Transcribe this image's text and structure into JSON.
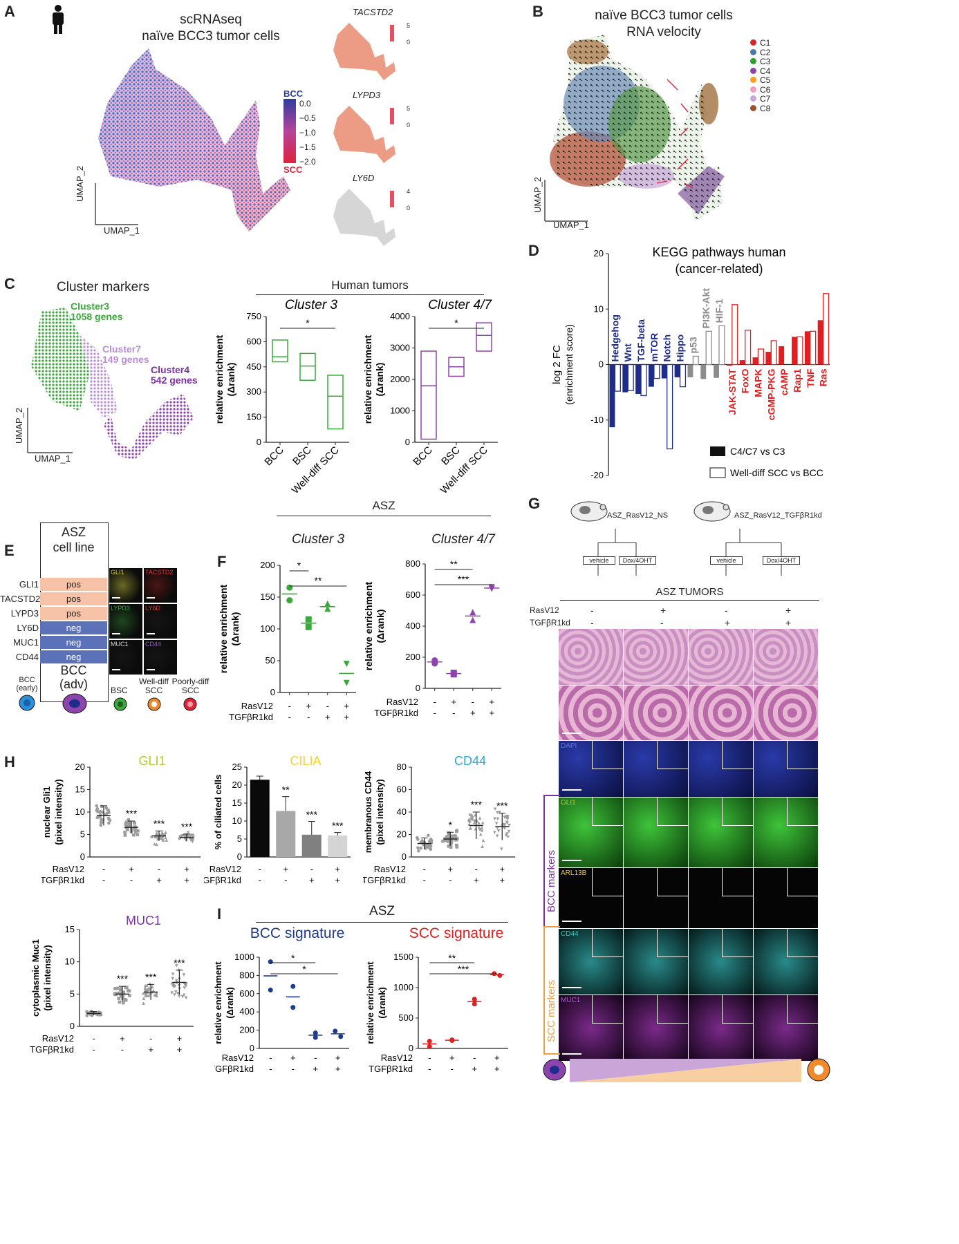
{
  "panels": [
    "A",
    "B",
    "C",
    "D",
    "E",
    "F",
    "G",
    "H",
    "I"
  ],
  "panelA": {
    "title_line1": "scRNAseq",
    "title_line2": "naïve BCC3 tumor cells",
    "xlabel": "UMAP_1",
    "ylabel": "UMAP_2",
    "colorbar_top_label": "BCC",
    "colorbar_bottom_label": "SCC",
    "colorbar_ticks": [
      "0.0",
      "−0.5",
      "−1.0",
      "−1.5",
      "−2.0"
    ],
    "genes": [
      {
        "name": "TACSTD2",
        "max": "5",
        "min": "0"
      },
      {
        "name": "LYPD3",
        "max": "5",
        "min": "0"
      },
      {
        "name": "LY6D",
        "max": "4",
        "min": "0"
      }
    ]
  },
  "panelB": {
    "title_line1": "naïve BCC3 tumor cells",
    "title_line2": "RNA velocity",
    "xlabel": "UMAP_1",
    "ylabel": "UMAP_2",
    "legend": [
      {
        "label": "C1",
        "color": "#d62728"
      },
      {
        "label": "C2",
        "color": "#4c78a8"
      },
      {
        "label": "C3",
        "color": "#2ca02c"
      },
      {
        "label": "C4",
        "color": "#8e44ad"
      },
      {
        "label": "C5",
        "color": "#ff9f1c"
      },
      {
        "label": "C6",
        "color": "#f39ac0"
      },
      {
        "label": "C7",
        "color": "#c7a6d6"
      },
      {
        "label": "C8",
        "color": "#a0522d"
      }
    ]
  },
  "panelC": {
    "title": "Cluster markers",
    "cluster_labels": [
      {
        "name": "Cluster3",
        "genes": "1058 genes",
        "color": "#3aa83a"
      },
      {
        "name": "Cluster7",
        "genes": "149 genes",
        "color": "#b98ed6"
      },
      {
        "name": "Cluster4",
        "genes": "542 genes",
        "color": "#7b2fa5"
      }
    ],
    "xlabel": "UMAP_1",
    "ylabel": "UMAP_2",
    "header": "Human tumors",
    "ylabel_plot": "relative enrichment",
    "ylabel_plot2": "(Δrank)",
    "sig": "*"
  },
  "chart_data": [
    {
      "type": "box",
      "title": "Cluster 3",
      "categories": [
        "BCC",
        "BSC",
        "Well-diff SCC"
      ],
      "ylim": [
        0,
        750
      ],
      "yticks": [
        0,
        150,
        300,
        450,
        600,
        750
      ],
      "boxes": [
        {
          "low": 480,
          "mid": 510,
          "high": 610
        },
        {
          "low": 370,
          "mid": 455,
          "high": 530
        },
        {
          "low": 80,
          "mid": 275,
          "high": 400
        }
      ],
      "color": "#3aa83a"
    },
    {
      "type": "box",
      "title": "Cluster 4/7",
      "categories": [
        "BCC",
        "BSC",
        "Well-diff SCC"
      ],
      "ylim": [
        0,
        4000
      ],
      "yticks": [
        0,
        1000,
        2000,
        3000,
        4000
      ],
      "boxes": [
        {
          "low": 100,
          "mid": 1800,
          "high": 2900
        },
        {
          "low": 2100,
          "mid": 2400,
          "high": 2700
        },
        {
          "low": 2900,
          "mid": 3400,
          "high": 3800
        }
      ],
      "color": "#8e44ad"
    },
    {
      "type": "bar",
      "title": "KEGG pathways human",
      "subtitle": "(cancer-related)",
      "ylabel": "log 2 FC",
      "ylabel2": "(enrichment score)",
      "ylim": [
        -20,
        20
      ],
      "yticks": [
        -20,
        -10,
        0,
        10,
        20
      ],
      "categories": [
        "Hedgehog",
        "Wnt",
        "TGF-beta",
        "mTOR",
        "Notch",
        "Hippo",
        "p53",
        "PI3K-Akt",
        "HIF-1",
        "JAK-STAT",
        "FoxO",
        "MAPK",
        "cGMP-PKG",
        "cAMP",
        "Rap1",
        "TNF",
        "Ras"
      ],
      "series": [
        {
          "name": "C4/C7 vs C3",
          "values": [
            -11.3,
            -5.0,
            -5.3,
            -4.0,
            -2.5,
            -2.3,
            -2.3,
            -2.6,
            -2.4,
            -0.2,
            0.8,
            1.3,
            2.3,
            3.3,
            5.0,
            6.0,
            8.0
          ]
        },
        {
          "name": "Well-diff SCC vs BCC",
          "values": [
            -4.8,
            -4.7,
            -5.6,
            -2.5,
            -15.2,
            -4.0,
            1.5,
            6.0,
            7.0,
            10.8,
            6.2,
            2.8,
            4.3,
            0.0,
            5.0,
            6.0,
            12.8
          ]
        }
      ],
      "colors": {
        "group1": "#1f2d8a",
        "group2": "#8c8c8c",
        "group3": "#e02020"
      }
    },
    {
      "type": "scatter",
      "title": "Cluster 3",
      "ylabel": "relative enrichment",
      "ylabel2": "(Δrank)",
      "ylim": [
        0,
        200
      ],
      "yticks": [
        0,
        50,
        100,
        150,
        200
      ],
      "groups": [
        {
          "points": [
            165,
            145
          ],
          "mean": 155,
          "marker": "circle"
        },
        {
          "points": [
            115,
            103
          ],
          "mean": 109,
          "marker": "square"
        },
        {
          "points": [
            140,
            132
          ],
          "mean": 135,
          "marker": "triangle-up"
        },
        {
          "points": [
            45,
            15
          ],
          "mean": 30,
          "marker": "triangle-down"
        }
      ],
      "color": "#3aa83a",
      "sig": [
        {
          "from": 0,
          "to": 1,
          "label": "*"
        },
        {
          "from": 0,
          "to": 3,
          "label": "**"
        }
      ]
    },
    {
      "type": "scatter",
      "title": "Cluster 4/7",
      "ylabel": "relative enrichment",
      "ylabel2": "(Δrank)",
      "ylim": [
        0,
        800
      ],
      "yticks": [
        0,
        200,
        400,
        600,
        800
      ],
      "groups": [
        {
          "points": [
            180,
            160
          ],
          "mean": 170,
          "marker": "circle"
        },
        {
          "points": [
            100,
            90
          ],
          "mean": 95,
          "marker": "square"
        },
        {
          "points": [
            490,
            440
          ],
          "mean": 465,
          "marker": "triangle-up"
        },
        {
          "points": [
            650,
            640
          ],
          "mean": 645,
          "marker": "triangle-down"
        }
      ],
      "color": "#8e44ad",
      "sig": [
        {
          "from": 0,
          "to": 2,
          "label": "**"
        },
        {
          "from": 0,
          "to": 3,
          "label": "***"
        }
      ]
    },
    {
      "type": "scatter",
      "title": "GLI1",
      "ylabel": "nuclear Gli1",
      "ylabel2": "(pixel intensity)",
      "ylim": [
        0,
        20
      ],
      "yticks": [
        0,
        5,
        10,
        15,
        20
      ],
      "means": [
        9.2,
        6.6,
        4.7,
        4.3
      ],
      "sd": [
        2.2,
        1.4,
        1.1,
        0.8
      ],
      "sig": [
        "",
        "***",
        "***",
        "***"
      ],
      "color": "#9c9c9c",
      "title_color": "#b5c930"
    },
    {
      "type": "bar",
      "title": "CILIA",
      "ylabel": "% of ciliated cells",
      "ylim": [
        0,
        25
      ],
      "yticks": [
        0,
        5,
        10,
        15,
        20,
        25
      ],
      "values": [
        21.5,
        12.8,
        6.2,
        6.0
      ],
      "errors": [
        1.0,
        4.0,
        3.7,
        0.8
      ],
      "bar_colors": [
        "#0a0a0a",
        "#a8a8a8",
        "#808080",
        "#d4d4d4"
      ],
      "sig": [
        "",
        "**",
        "***",
        "***"
      ],
      "title_color": "#f2d22f"
    },
    {
      "type": "scatter",
      "title": "CD44",
      "ylabel": "membranous CD44",
      "ylabel2": "(pixel intensity)",
      "ylim": [
        0,
        80
      ],
      "yticks": [
        0,
        20,
        40,
        60,
        80
      ],
      "means": [
        12,
        16,
        28,
        27
      ],
      "sd": [
        5,
        6,
        12,
        12
      ],
      "sig": [
        "",
        "*",
        "***",
        "***"
      ],
      "color": "#9c9c9c",
      "title_color": "#2fa7d0"
    },
    {
      "type": "scatter",
      "title": "MUC1",
      "ylabel": "cytoplasmic Muc1",
      "ylabel2": "(pixel intensity)",
      "ylim": [
        0,
        15
      ],
      "yticks": [
        0,
        5,
        10,
        15
      ],
      "means": [
        2.0,
        5.0,
        5.3,
        6.8
      ],
      "sd": [
        0.3,
        1.2,
        1.2,
        1.9
      ],
      "sig": [
        "",
        "***",
        "***",
        "***"
      ],
      "color": "#9c9c9c",
      "title_color": "#7b2fa5"
    },
    {
      "type": "scatter",
      "title": "BCC signature",
      "ylabel": "relative enrichment",
      "ylabel2": "(Δrank)",
      "ylim": [
        0,
        1000
      ],
      "yticks": [
        0,
        200,
        400,
        600,
        800,
        1000
      ],
      "groups": [
        {
          "points": [
            950,
            640
          ],
          "mean": 795
        },
        {
          "points": [
            680,
            450
          ],
          "mean": 565
        },
        {
          "points": [
            170,
            120
          ],
          "mean": 145
        },
        {
          "points": [
            190,
            130
          ],
          "mean": 160
        }
      ],
      "color": "#1f3a8a",
      "sig": [
        {
          "from": 0,
          "to": 2,
          "label": "*"
        },
        {
          "from": 0,
          "to": 3,
          "label": "*"
        }
      ],
      "title_color": "#1f3a8a"
    },
    {
      "type": "scatter",
      "title": "SCC signature",
      "ylabel": "relative enrichment",
      "ylabel2": "(Δrank)",
      "ylim": [
        0,
        1500
      ],
      "yticks": [
        0,
        500,
        1000,
        1500
      ],
      "groups": [
        {
          "points": [
            120,
            30
          ],
          "mean": 75
        },
        {
          "points": [
            140,
            130
          ],
          "mean": 135
        },
        {
          "points": [
            810,
            730
          ],
          "mean": 770
        },
        {
          "points": [
            1230,
            1200
          ],
          "mean": 1215
        }
      ],
      "color": "#e02020",
      "sig": [
        {
          "from": 0,
          "to": 2,
          "label": "**"
        },
        {
          "from": 0,
          "to": 3,
          "label": "***"
        }
      ],
      "title_color": "#e02020"
    }
  ],
  "panelD": {
    "legend1": "C4/C7 vs C3",
    "legend2": "Well-diff SCC vs BCC"
  },
  "panelE": {
    "header1": "ASZ",
    "header2": "cell line",
    "rows": [
      {
        "gene": "GLI1",
        "status": "pos"
      },
      {
        "gene": "TACSTD2",
        "status": "pos"
      },
      {
        "gene": "LYPD3",
        "status": "pos"
      },
      {
        "gene": "LY6D",
        "status": "neg"
      },
      {
        "gene": "MUC1",
        "status": "neg"
      },
      {
        "gene": "CD44",
        "status": "neg"
      }
    ],
    "bcc_adv_1": "BCC",
    "bcc_adv_2": "(adv)",
    "bcc_early_1": "BCC",
    "bcc_early_2": "(early)",
    "bsc": "BSC",
    "welldiff_1": "Well-diff",
    "welldiff_2": "SCC",
    "poorlydiff_1": "Poorly-diff",
    "poorlydiff_2": "SCC",
    "stains": [
      {
        "label": "GLI1",
        "color": "#d6d233"
      },
      {
        "label": "TACSTD2",
        "color": "#e23a3a"
      },
      {
        "label": "LYPD3",
        "color": "#3aa83a"
      },
      {
        "label": "LY6D",
        "color": "#e23a3a"
      },
      {
        "label": "MUC1",
        "color": "#dddddd"
      },
      {
        "label": "CD44",
        "color": "#a05ad0"
      }
    ]
  },
  "panelF": {
    "header": "ASZ"
  },
  "conditions": {
    "ras_label": "RasV12",
    "tgf_label": "TGFβR1kd",
    "ras": [
      "-",
      "+",
      "-",
      "+"
    ],
    "tgf": [
      "-",
      "-",
      "+",
      "+"
    ]
  },
  "panelG": {
    "mouse1": "ASZ_RasV12_NS",
    "mouse2": "ASZ_RasV12_TGFβR1kd",
    "vehicle": "vehicle",
    "dox": "Dox/4OHT",
    "tumors": "ASZ TUMORS",
    "ras_label": "RasV12",
    "tgf_label": "TGFβR1kd",
    "stains": [
      "DAPI",
      "GLI1",
      "ARL13B",
      "CD44",
      "MUC1"
    ],
    "bcc_markers": "BCC markers",
    "scc_markers": "SCC markers"
  },
  "panelI": {
    "header": "ASZ"
  }
}
